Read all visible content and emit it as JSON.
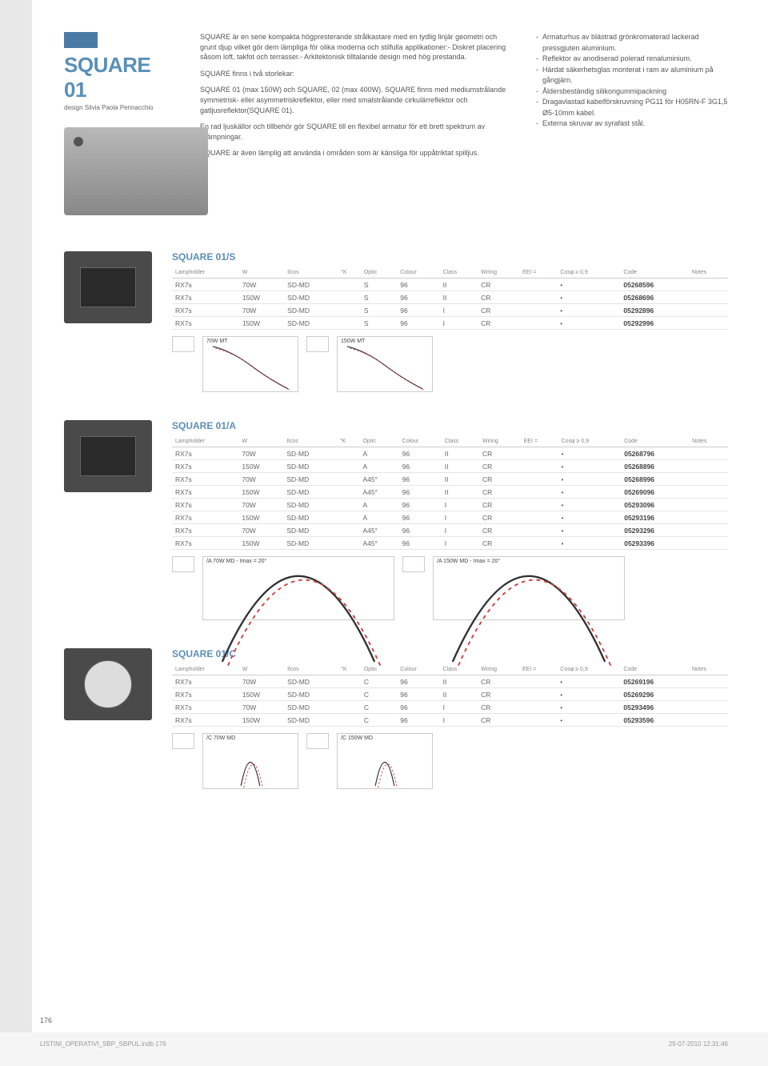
{
  "header": {
    "title": "SQUARE 01",
    "subtitle": "design Silvia Paola Pennacchio"
  },
  "description": {
    "p1": "SQUARE är en serie kompakta högpresterande strålkastare med en tydlig linjär geometri och grunt djup vilket gör dem lämpliga för olika moderna och stilfulla applikationer:- Diskret placering såsom loft, takfot och terrasser.- Arkitektonisk tilltalande design med hög prestanda.",
    "p2": "SQUARE finns i två storlekar:",
    "p3": "SQUARE 01 (max 150W) och SQUARE, 02 (max 400W). SQUARE finns med mediumstrålande symmetrisk- eller asymmetriskreflektor, eller med smalstrålande cirkulärreflektor och gatljusreflektor(SQUARE 01).",
    "p4": "En rad ljuskällor och tillbehör gör SQUARE till en flexibel armatur för ett brett spektrum av tillämpningar.",
    "p5": "SQUARE är även lämplig att använda i områden som är känsliga för uppåtriktat spilljus."
  },
  "specs": [
    "Armaturhus av blästrad grönkromaterad lackerad pressgjuten aluminium.",
    "Reflektor av anodiserad polerad renaluminium.",
    "Härdat säkerhetsglas monterat i ram av aluminium på gångjärn.",
    "Åldersbeständig silikongummipackning",
    "Dragavlastad kabelförskruvning PG11 för H05RN-F 3G1,5 Ø5-10mm kabel.",
    "Externa skruvar av syrafast stål."
  ],
  "tableHeaders": [
    "Lampholder",
    "W",
    "Ilcos",
    "°K",
    "Optic",
    "Colour",
    "Class",
    "Wiring",
    "EEI =",
    "Cosφ ≥ 0,9",
    "Code",
    "Notes"
  ],
  "sections": [
    {
      "title": "SQUARE 01/S",
      "rows": [
        [
          "RX7s",
          "70W",
          "SD-MD",
          "",
          "S",
          "96",
          "II",
          "CR",
          "",
          "•",
          "05268596",
          ""
        ],
        [
          "RX7s",
          "150W",
          "SD-MD",
          "",
          "S",
          "96",
          "II",
          "CR",
          "",
          "•",
          "05268696",
          ""
        ],
        [
          "RX7s",
          "70W",
          "SD-MD",
          "",
          "S",
          "96",
          "I",
          "CR",
          "",
          "•",
          "05292896",
          ""
        ],
        [
          "RX7s",
          "150W",
          "SD-MD",
          "",
          "S",
          "96",
          "I",
          "CR",
          "",
          "•",
          "05292996",
          ""
        ]
      ],
      "charts": [
        "70W MT",
        "150W MT"
      ]
    },
    {
      "title": "SQUARE 01/A",
      "rows": [
        [
          "RX7s",
          "70W",
          "SD-MD",
          "",
          "A",
          "96",
          "II",
          "CR",
          "",
          "•",
          "05268796",
          ""
        ],
        [
          "RX7s",
          "150W",
          "SD-MD",
          "",
          "A",
          "96",
          "II",
          "CR",
          "",
          "•",
          "05268896",
          ""
        ],
        [
          "RX7s",
          "70W",
          "SD-MD",
          "",
          "A45°",
          "96",
          "II",
          "CR",
          "",
          "•",
          "05268996",
          ""
        ],
        [
          "RX7s",
          "150W",
          "SD-MD",
          "",
          "A45°",
          "96",
          "II",
          "CR",
          "",
          "•",
          "05269096",
          ""
        ],
        [
          "RX7s",
          "70W",
          "SD-MD",
          "",
          "A",
          "96",
          "I",
          "CR",
          "",
          "•",
          "05293096",
          ""
        ],
        [
          "RX7s",
          "150W",
          "SD-MD",
          "",
          "A",
          "96",
          "I",
          "CR",
          "",
          "•",
          "05293196",
          ""
        ],
        [
          "RX7s",
          "70W",
          "SD-MD",
          "",
          "A45°",
          "96",
          "I",
          "CR",
          "",
          "•",
          "05293296",
          ""
        ],
        [
          "RX7s",
          "150W",
          "SD-MD",
          "",
          "A45°",
          "96",
          "I",
          "CR",
          "",
          "•",
          "05293396",
          ""
        ]
      ],
      "charts": [
        "/A 70W MD - Imax = 20°",
        "/A 150W MD - Imax = 20°"
      ]
    },
    {
      "title": "SQUARE 01/C",
      "rows": [
        [
          "RX7s",
          "70W",
          "SD-MD",
          "",
          "C",
          "96",
          "II",
          "CR",
          "",
          "•",
          "05269196",
          ""
        ],
        [
          "RX7s",
          "150W",
          "SD-MD",
          "",
          "C",
          "96",
          "II",
          "CR",
          "",
          "•",
          "05269296",
          ""
        ],
        [
          "RX7s",
          "70W",
          "SD-MD",
          "",
          "C",
          "96",
          "I",
          "CR",
          "",
          "•",
          "05293496",
          ""
        ],
        [
          "RX7s",
          "150W",
          "SD-MD",
          "",
          "C",
          "96",
          "I",
          "CR",
          "",
          "•",
          "05293596",
          ""
        ]
      ],
      "charts": [
        "/C 70W MD",
        "/C 150W MD"
      ]
    }
  ],
  "pageNumber": "176",
  "meta": {
    "file": "LISTINI_OPERATIVI_SBP_SBPUL.indb   176",
    "date": "29-07-2010   12:31:46"
  },
  "colors": {
    "brand": "#5a8fb8",
    "text": "#555",
    "border": "#ccc"
  }
}
